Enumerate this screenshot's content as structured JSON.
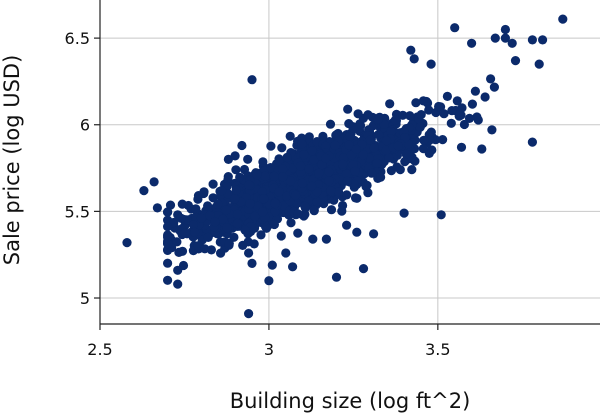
{
  "chart_data": {
    "type": "scatter",
    "title": "",
    "xlabel": "Building size (log ft^2)",
    "ylabel": "Sale price (log USD)",
    "xlim": [
      2.5,
      3.98
    ],
    "ylim": [
      4.85,
      6.72
    ],
    "xticks": [
      2.5,
      3,
      3.5
    ],
    "xtick_labels": [
      "2.5",
      "3",
      "3.5"
    ],
    "yticks": [
      5,
      5.5,
      6,
      6.5
    ],
    "ytick_labels": [
      "5",
      "5.5",
      "6",
      "6.5"
    ],
    "grid": true,
    "legend": "none",
    "marker_color": "#0b2a6b",
    "series": [
      {
        "name": "",
        "cluster": {
          "count": 1700,
          "x_mean": 3.12,
          "x_sd": 0.17,
          "slope": 0.82,
          "intercept": 3.14,
          "noise_sd": 0.09
        },
        "points": [
          [
            2.58,
            5.32
          ],
          [
            2.63,
            5.62
          ],
          [
            2.66,
            5.67
          ],
          [
            2.67,
            5.52
          ],
          [
            2.73,
            5.08
          ],
          [
            2.73,
            5.16
          ],
          [
            2.73,
            5.48
          ],
          [
            2.74,
            5.46
          ],
          [
            2.78,
            5.38
          ],
          [
            2.8,
            5.46
          ],
          [
            2.84,
            5.44
          ],
          [
            2.86,
            5.62
          ],
          [
            2.88,
            5.8
          ],
          [
            2.9,
            5.82
          ],
          [
            2.92,
            5.88
          ],
          [
            2.93,
            5.39
          ],
          [
            2.94,
            5.26
          ],
          [
            2.94,
            4.91
          ],
          [
            2.95,
            5.2
          ],
          [
            2.95,
            6.26
          ],
          [
            3.0,
            5.1
          ],
          [
            3.01,
            5.19
          ],
          [
            3.05,
            5.26
          ],
          [
            3.07,
            5.18
          ],
          [
            3.13,
            5.34
          ],
          [
            3.17,
            5.34
          ],
          [
            3.2,
            5.12
          ],
          [
            3.23,
            5.42
          ],
          [
            3.26,
            5.38
          ],
          [
            3.28,
            5.17
          ],
          [
            3.31,
            5.37
          ],
          [
            3.4,
            5.49
          ],
          [
            3.42,
            6.43
          ],
          [
            3.43,
            6.38
          ],
          [
            3.48,
            6.35
          ],
          [
            3.51,
            5.48
          ],
          [
            3.55,
            6.56
          ],
          [
            3.57,
            5.87
          ],
          [
            3.6,
            6.47
          ],
          [
            3.63,
            5.86
          ],
          [
            3.66,
            5.97
          ],
          [
            3.67,
            6.5
          ],
          [
            3.7,
            6.5
          ],
          [
            3.7,
            6.55
          ],
          [
            3.72,
            6.47
          ],
          [
            3.73,
            6.37
          ],
          [
            3.78,
            6.49
          ],
          [
            3.78,
            5.9
          ],
          [
            3.8,
            6.35
          ],
          [
            3.81,
            6.49
          ],
          [
            3.87,
            6.61
          ]
        ]
      }
    ]
  }
}
